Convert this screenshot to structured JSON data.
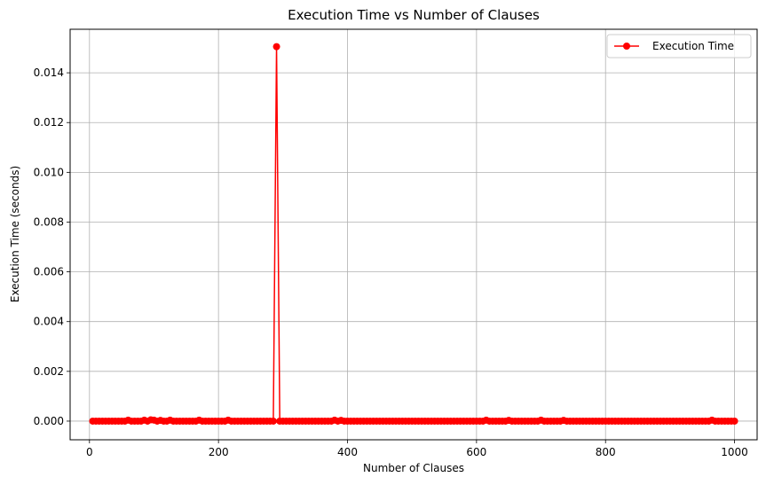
{
  "chart_data": {
    "type": "line",
    "title": "Execution Time vs Number of Clauses",
    "xlabel": "Number of Clauses",
    "ylabel": "Execution Time (seconds)",
    "xlim": [
      -30,
      1035
    ],
    "ylim": [
      -0.00075,
      0.01575
    ],
    "xticks": [
      0,
      200,
      400,
      600,
      800,
      1000
    ],
    "yticks": [
      0.0,
      0.002,
      0.004,
      0.006,
      0.008,
      0.01,
      0.012,
      0.014
    ],
    "ytick_labels": [
      "0.000",
      "0.002",
      "0.004",
      "0.006",
      "0.008",
      "0.010",
      "0.012",
      "0.014"
    ],
    "grid": true,
    "legend_position": "top-right",
    "series": [
      {
        "name": "Execution Time",
        "color": "#ff0000",
        "marker": "circle",
        "x_start": 5,
        "x_end": 1000,
        "x_step": 5,
        "baseline": 0.0,
        "overrides": [
          {
            "x": 60,
            "y": 4e-05
          },
          {
            "x": 85,
            "y": 4e-05
          },
          {
            "x": 95,
            "y": 5e-05
          },
          {
            "x": 100,
            "y": 4e-05
          },
          {
            "x": 110,
            "y": 3e-05
          },
          {
            "x": 125,
            "y": 4e-05
          },
          {
            "x": 170,
            "y": 4e-05
          },
          {
            "x": 215,
            "y": 4e-05
          },
          {
            "x": 290,
            "y": 0.01505
          },
          {
            "x": 380,
            "y": 4e-05
          },
          {
            "x": 390,
            "y": 3e-05
          },
          {
            "x": 615,
            "y": 4e-05
          },
          {
            "x": 650,
            "y": 3e-05
          },
          {
            "x": 700,
            "y": 4e-05
          },
          {
            "x": 735,
            "y": 3e-05
          },
          {
            "x": 965,
            "y": 4e-05
          }
        ]
      }
    ]
  }
}
